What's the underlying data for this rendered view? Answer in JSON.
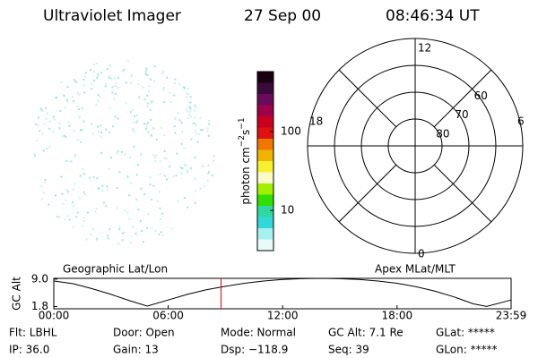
{
  "header": {
    "title": "Ultraviolet Imager",
    "date": "27 Sep 00",
    "time": "08:46:34 UT"
  },
  "colorbar": {
    "label": "photon cm",
    "exp1": "−2",
    "unit2": "s",
    "exp2": "−1",
    "log": true,
    "range": [
      3.1,
      575
    ],
    "ticks": [
      10,
      100
    ],
    "colors": [
      "#1a0010",
      "#3a0a3a",
      "#6a0a5a",
      "#a0004a",
      "#c8001e",
      "#e01010",
      "#f07800",
      "#f0b400",
      "#f6f030",
      "#fafac8",
      "#a0f000",
      "#30e000",
      "#30d8a0",
      "#30d8d8",
      "#a8f0f0",
      "#e8fafa"
    ]
  },
  "polar": {
    "lat_labels": [
      "60",
      "70",
      "80"
    ],
    "mlt_top": "12",
    "mlt_left": "18",
    "mlt_right": "6",
    "mlt_bottom": "0"
  },
  "panel_labels": {
    "left": "Geographic Lat/Lon",
    "right": "Apex MLat/MLT"
  },
  "altitude_plot": {
    "ylabel": "GC Alt",
    "ylim": [
      1.2,
      9.2
    ],
    "yticks": [
      {
        "value": 9,
        "label": "9.0"
      },
      1.8
    ],
    "xlim": [
      0,
      23.98
    ],
    "xticks": [
      {
        "value": 0,
        "label": "00:00"
      },
      {
        "value": 6,
        "label": "06:00"
      },
      {
        "value": 12,
        "label": "12:00"
      },
      {
        "value": 18,
        "label": "18:00"
      },
      {
        "value": 23.98,
        "label": "23:59"
      }
    ],
    "x": [
      0,
      1,
      2,
      3,
      4,
      4.9,
      6,
      7,
      8,
      9,
      10,
      11,
      12,
      13,
      14,
      15,
      16,
      17,
      18,
      19,
      20,
      21,
      22,
      22.7,
      23.98
    ],
    "values": [
      8.5,
      7.8,
      6.5,
      5,
      3.3,
      1.9,
      3.5,
      5,
      6.2,
      7.1,
      7.9,
      8.5,
      8.9,
      9.1,
      9.2,
      9.1,
      8.9,
      8.5,
      7.9,
      7,
      5.8,
      4.3,
      2.5,
      1.8,
      3.5
    ],
    "current_time": 8.77
  },
  "info": [
    [
      "Flt: LBHL",
      "Door: Open",
      "Mode: Normal",
      "GC Alt: 7.1 Re",
      "GLat: *****"
    ],
    [
      "IP: 36.0",
      "Gain: 13",
      "Dsp: −118.9",
      "Seq: 39",
      "GLon: *****"
    ]
  ]
}
